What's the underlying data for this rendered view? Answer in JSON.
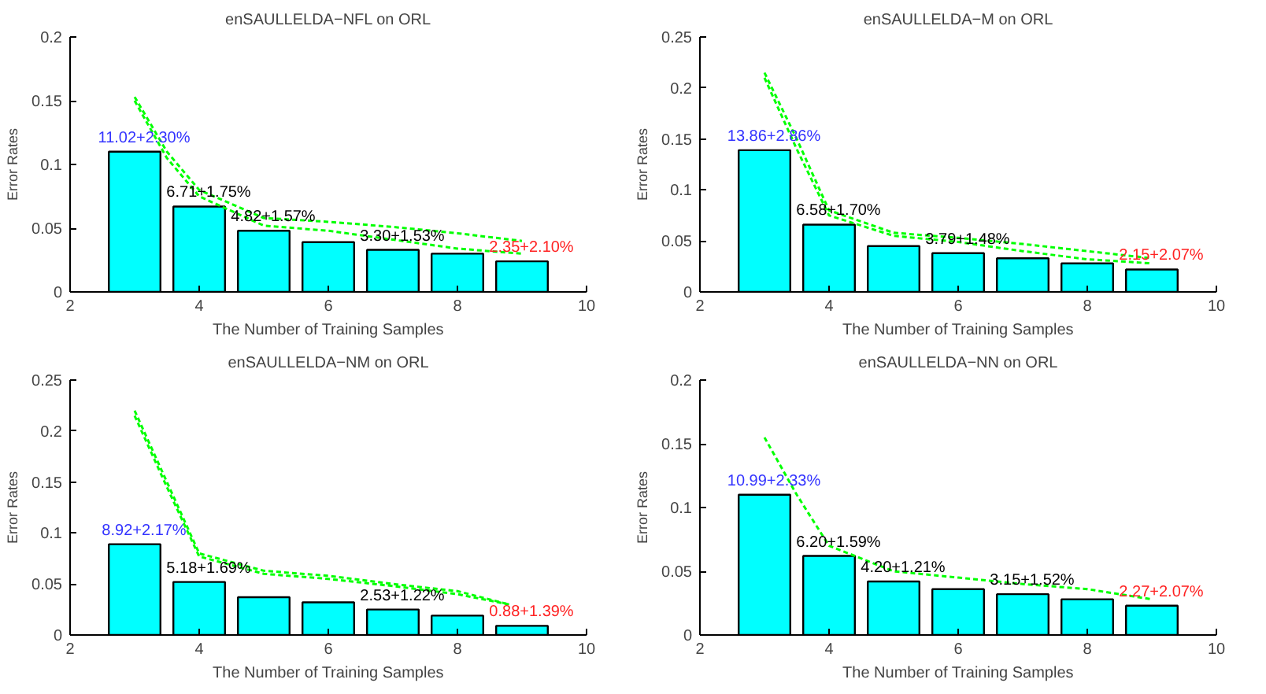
{
  "chart_data": [
    {
      "type": "bar",
      "title": "enSAULLELDA−NFL on ORL",
      "xlabel": "The Number of Training Samples",
      "ylabel": "Error Rates",
      "x": [
        3,
        4,
        5,
        6,
        7,
        8,
        9
      ],
      "xlim": [
        2,
        10
      ],
      "xticks": [
        2,
        4,
        6,
        8,
        10
      ],
      "ylim": [
        0,
        0.2
      ],
      "yticks": [
        0,
        0.05,
        0.1,
        0.15,
        0.2
      ],
      "grid": false,
      "line_style": "dashed",
      "series": [
        {
          "color": "#00ffff",
          "values": [
            0.11,
            0.067,
            0.048,
            0.039,
            0.033,
            0.03,
            0.024
          ]
        },
        {
          "type": "line",
          "color": "#00ff00",
          "x": [
            3,
            3.5,
            4,
            5,
            6,
            7,
            8,
            9
          ],
          "values": [
            0.153,
            0.11,
            0.08,
            0.058,
            0.055,
            0.051,
            0.046,
            0.04
          ]
        },
        {
          "type": "line",
          "color": "#00ff00",
          "x": [
            3,
            3.5,
            4,
            5,
            6,
            7,
            8,
            9
          ],
          "values": [
            0.15,
            0.105,
            0.075,
            0.052,
            0.048,
            0.041,
            0.034,
            0.03
          ]
        }
      ],
      "annotations": [
        {
          "text": "11.02+2.30%",
          "x": 3,
          "y": 0.11
        },
        {
          "text": "6.71+1.75%",
          "x": 4,
          "y": 0.067
        },
        {
          "text": "4.82+1.57%",
          "x": 5,
          "y": 0.048
        },
        {
          "text": "3.30+1.53%",
          "x": 7,
          "y": 0.033
        },
        {
          "text": "2.35+2.10%",
          "x": 9,
          "y": 0.024
        }
      ]
    },
    {
      "type": "bar",
      "title": "enSAULLELDA−M on ORL",
      "xlabel": "The Number of Training Samples",
      "ylabel": "Error Rates",
      "x": [
        3,
        4,
        5,
        6,
        7,
        8,
        9
      ],
      "xlim": [
        2,
        10
      ],
      "xticks": [
        2,
        4,
        6,
        8,
        10
      ],
      "ylim": [
        0,
        0.25
      ],
      "yticks": [
        0,
        0.05,
        0.1,
        0.15,
        0.2,
        0.25
      ],
      "grid": false,
      "line_style": "dashed",
      "series": [
        {
          "color": "#00ffff",
          "values": [
            0.139,
            0.066,
            0.045,
            0.038,
            0.033,
            0.028,
            0.022
          ]
        },
        {
          "type": "line",
          "color": "#00ff00",
          "x": [
            3,
            3.5,
            4,
            5,
            6,
            7,
            8,
            9
          ],
          "values": [
            0.215,
            0.15,
            0.08,
            0.058,
            0.053,
            0.047,
            0.04,
            0.033
          ]
        },
        {
          "type": "line",
          "color": "#00ff00",
          "x": [
            3,
            3.5,
            4,
            5,
            6,
            7,
            8,
            9
          ],
          "values": [
            0.21,
            0.14,
            0.075,
            0.055,
            0.049,
            0.04,
            0.032,
            0.028
          ]
        }
      ],
      "annotations": [
        {
          "text": "13.86+2.86%",
          "x": 3,
          "y": 0.139
        },
        {
          "text": "6.58+1.70%",
          "x": 4,
          "y": 0.066
        },
        {
          "text": "3.79+1.48%",
          "x": 6,
          "y": 0.038
        },
        {
          "text": "2.15+2.07%",
          "x": 9,
          "y": 0.022
        }
      ]
    },
    {
      "type": "bar",
      "title": "enSAULLELDA−NM on ORL",
      "xlabel": "The Number of Training Samples",
      "ylabel": "Error Rates",
      "x": [
        3,
        4,
        5,
        6,
        7,
        8,
        9
      ],
      "xlim": [
        2,
        10
      ],
      "xticks": [
        2,
        4,
        6,
        8,
        10
      ],
      "ylim": [
        0,
        0.25
      ],
      "yticks": [
        0,
        0.05,
        0.1,
        0.15,
        0.2,
        0.25
      ],
      "grid": false,
      "line_style": "dashed",
      "series": [
        {
          "color": "#00ffff",
          "values": [
            0.089,
            0.052,
            0.037,
            0.032,
            0.025,
            0.019,
            0.009
          ]
        },
        {
          "type": "line",
          "color": "#00ff00",
          "x": [
            3,
            3.5,
            4,
            5,
            6,
            7,
            8,
            8.8
          ],
          "values": [
            0.22,
            0.15,
            0.08,
            0.063,
            0.058,
            0.05,
            0.043,
            0.03
          ]
        },
        {
          "type": "line",
          "color": "#00ff00",
          "x": [
            3,
            3.5,
            4,
            5,
            6,
            7,
            8,
            8.8
          ],
          "values": [
            0.215,
            0.145,
            0.077,
            0.06,
            0.055,
            0.048,
            0.04,
            0.03
          ]
        }
      ],
      "annotations": [
        {
          "text": "8.92+2.17%",
          "x": 3,
          "y": 0.089
        },
        {
          "text": "5.18+1.69%",
          "x": 4,
          "y": 0.052
        },
        {
          "text": "2.53+1.22%",
          "x": 7,
          "y": 0.025
        },
        {
          "text": "0.88+1.39%",
          "x": 9,
          "y": 0.009
        }
      ]
    },
    {
      "type": "bar",
      "title": "enSAULLELDA−NN on ORL",
      "xlabel": "The Number of Training Samples",
      "ylabel": "Error Rates",
      "x": [
        3,
        4,
        5,
        6,
        7,
        8,
        9
      ],
      "xlim": [
        2,
        10
      ],
      "xticks": [
        2,
        4,
        6,
        8,
        10
      ],
      "ylim": [
        0,
        0.2
      ],
      "yticks": [
        0,
        0.05,
        0.1,
        0.15,
        0.2
      ],
      "grid": false,
      "line_style": "dashed",
      "series": [
        {
          "color": "#00ffff",
          "values": [
            0.11,
            0.062,
            0.042,
            0.036,
            0.032,
            0.028,
            0.023
          ]
        },
        {
          "type": "line",
          "color": "#00ff00",
          "x": [
            3,
            3.5,
            4,
            5,
            6,
            7,
            8,
            9
          ],
          "values": [
            0.155,
            0.11,
            0.07,
            0.05,
            0.045,
            0.04,
            0.036,
            0.028
          ]
        }
      ],
      "annotations": [
        {
          "text": "10.99+2.33%",
          "x": 3,
          "y": 0.11
        },
        {
          "text": "6.20+1.59%",
          "x": 4,
          "y": 0.062
        },
        {
          "text": "4.20+1.21%",
          "x": 5,
          "y": 0.042
        },
        {
          "text": "3.15+1.52%",
          "x": 7,
          "y": 0.032
        },
        {
          "text": "2.27+2.07%",
          "x": 9,
          "y": 0.023
        }
      ]
    }
  ]
}
